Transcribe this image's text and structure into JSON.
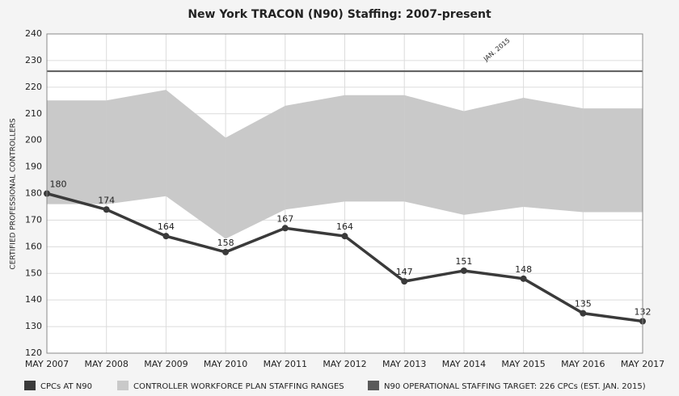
{
  "chart_data": {
    "type": "line",
    "title": "New York TRACON (N90) Staffing: 2007-present",
    "y_label": "CERTIFIED PROFESSIONAL CONTROLLERS",
    "categories": [
      "MAY 2007",
      "MAY 2008",
      "MAY 2009",
      "MAY 2010",
      "MAY 2011",
      "MAY 2012",
      "MAY 2013",
      "MAY 2014",
      "MAY 2015",
      "MAY 2016",
      "MAY 2017"
    ],
    "series": [
      {
        "name": "CPCs AT N90",
        "color": "#3a3a3a",
        "values": [
          180,
          174,
          164,
          158,
          167,
          164,
          147,
          151,
          148,
          135,
          132
        ]
      },
      {
        "name": "CONTROLLER WORKFORCE PLAN STAFFING RANGES",
        "color": "#c9c9c9",
        "low": [
          176,
          176,
          179,
          163,
          174,
          177,
          177,
          172,
          175,
          173,
          173
        ],
        "high": [
          215,
          215,
          219,
          201,
          213,
          217,
          217,
          211,
          216,
          212,
          212
        ]
      }
    ],
    "target": {
      "name": "N90 OPERATIONAL STAFFING TARGET: 226 CPCs (EST. JAN. 2015)",
      "color": "#5a5a5a",
      "value": 226,
      "annotation": "JAN. 2015"
    },
    "ylim": [
      120,
      240
    ],
    "yticks": [
      120,
      130,
      140,
      150,
      160,
      170,
      180,
      190,
      200,
      210,
      220,
      230,
      240
    ],
    "grid": true
  }
}
